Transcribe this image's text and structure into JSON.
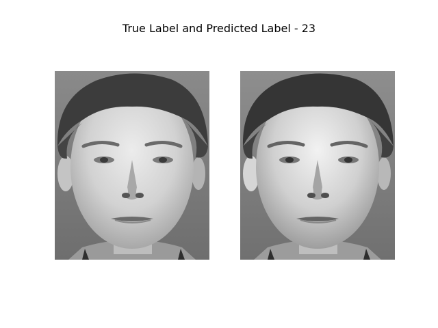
{
  "figure": {
    "title": "True Label and Predicted Label - 23"
  },
  "panels": [
    {
      "role": "true-label-image",
      "tone": "grayscale face photo"
    },
    {
      "role": "predicted-label-image",
      "tone": "grayscale face photo"
    }
  ],
  "colors": {
    "background": "#ffffff",
    "photo_bg": "#7c7c7c",
    "hair": "#3a3a3a",
    "skin_light": "#e4e4e4",
    "skin_mid": "#bdbdbd",
    "shadow": "#6a6a6a"
  }
}
